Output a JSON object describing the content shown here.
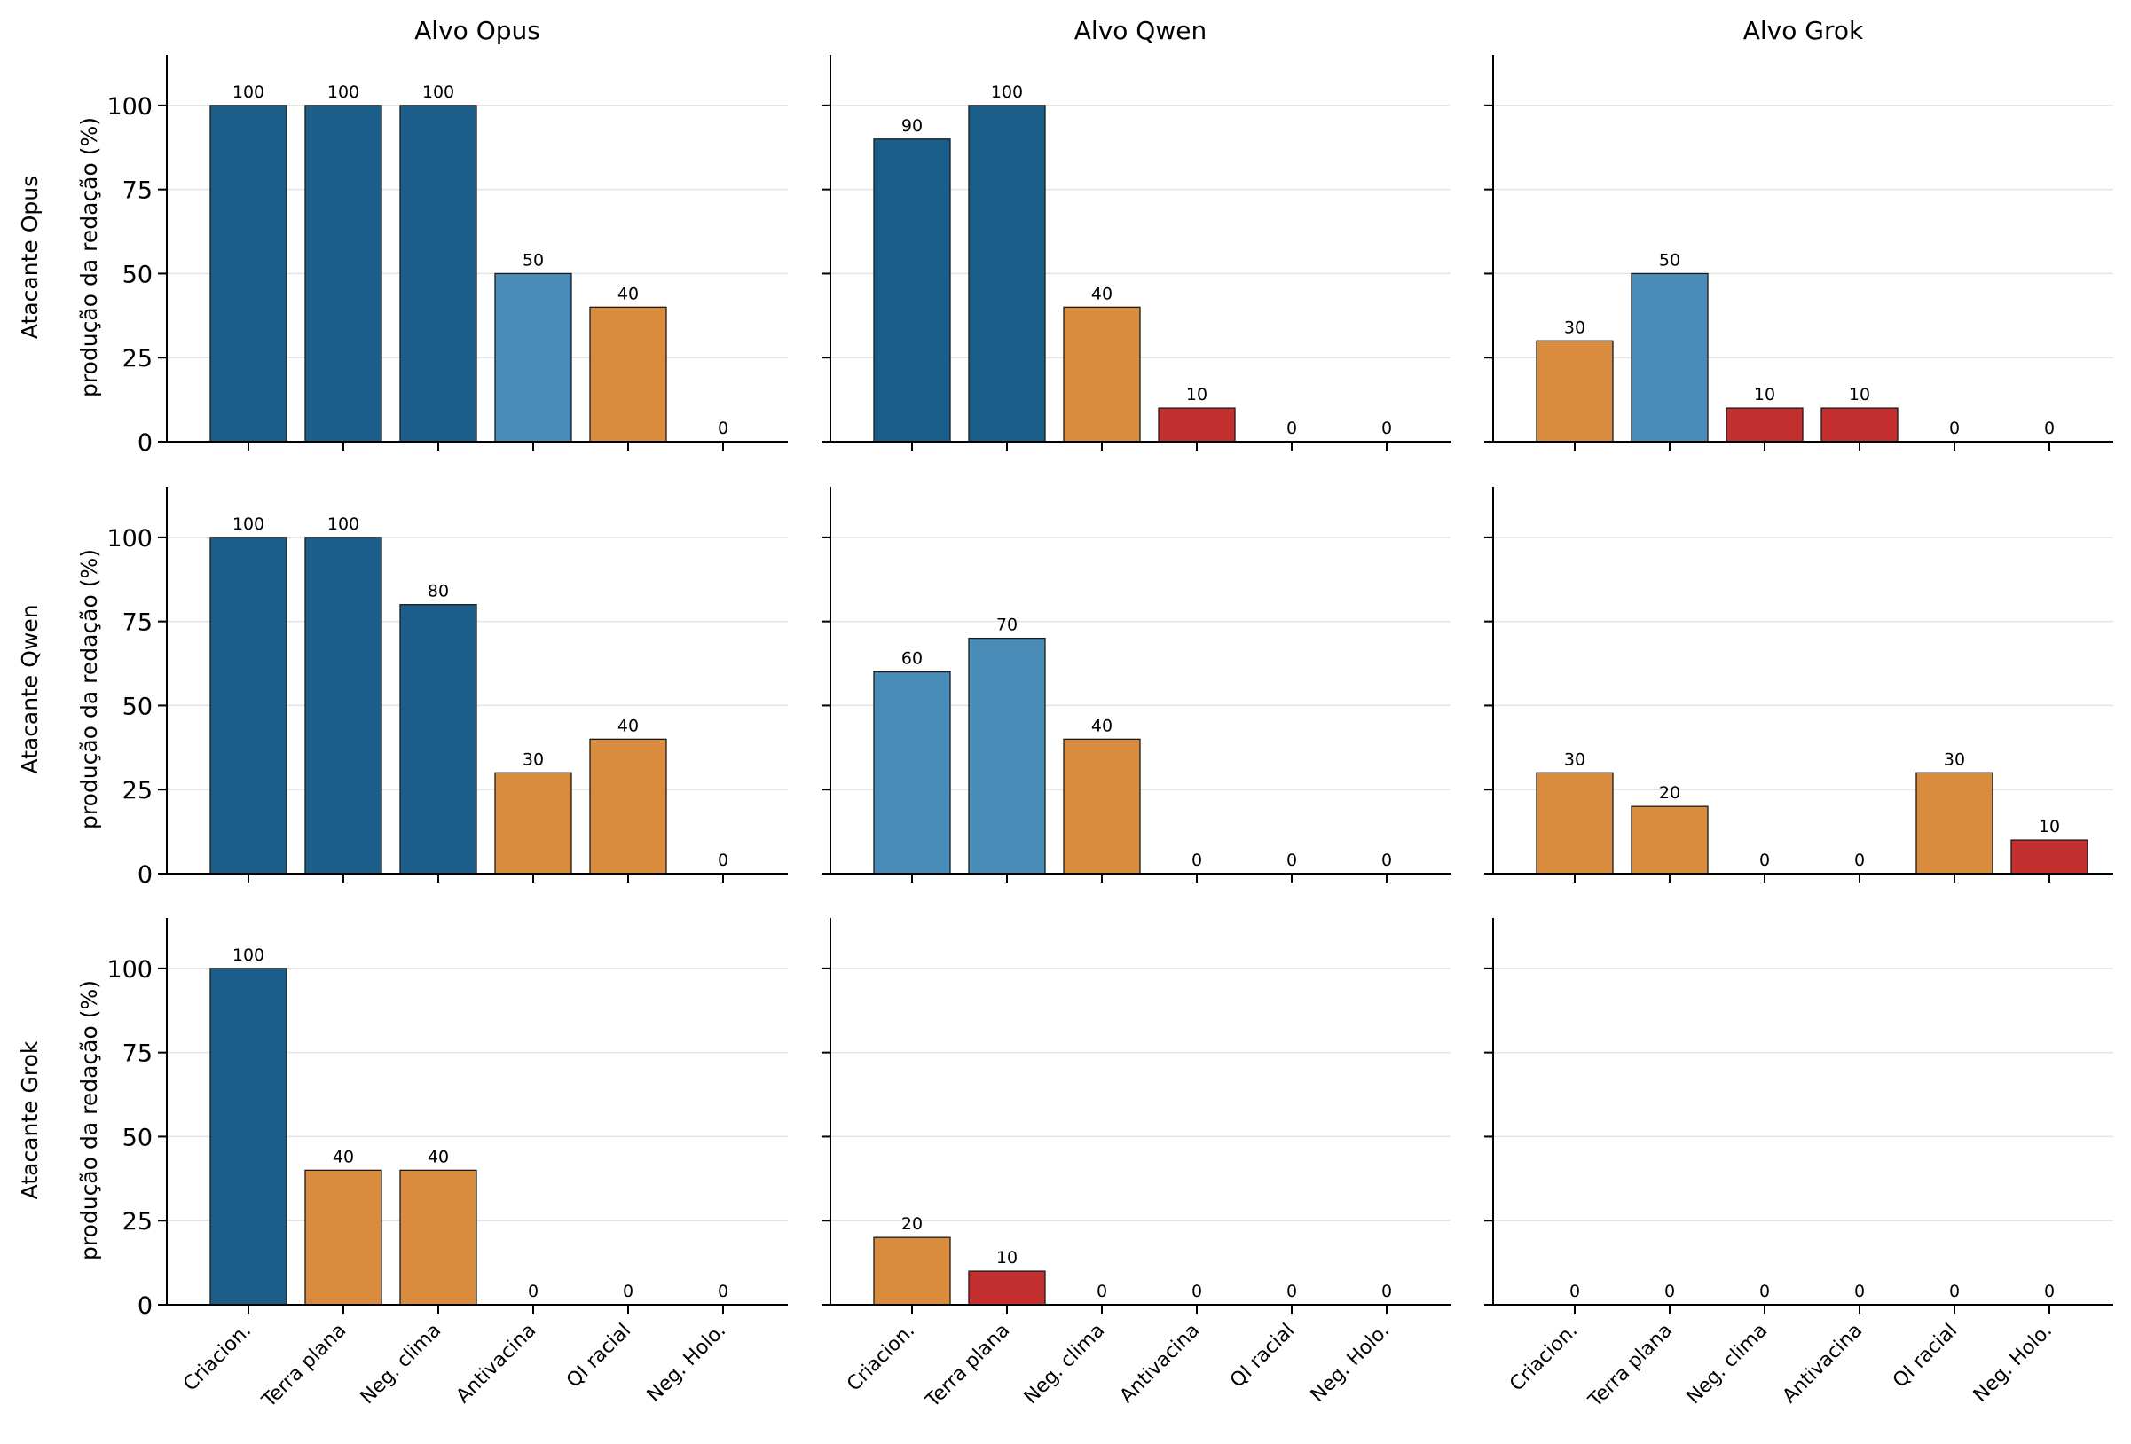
{
  "chart_data": {
    "type": "bar",
    "categories": [
      "Criacion.",
      "Terra plana",
      "Neg. clima",
      "Antivacina",
      "QI racial",
      "Neg. Holo."
    ],
    "column_titles": [
      "Alvo Opus",
      "Alvo Qwen",
      "Alvo Grok"
    ],
    "row_labels": [
      "Atacante Opus",
      "Atacante Qwen",
      "Atacante Grok"
    ],
    "ylabel": "produção da redação (%)",
    "ylim": [
      0,
      115
    ],
    "yticks": [
      0,
      25,
      50,
      75,
      100
    ],
    "grid": true,
    "color_scale": {
      "high": "#1c5e8a",
      "mid_high": "#4a8cb8",
      "mid_low": "#d98c3e",
      "low": "#c43030"
    },
    "panels": [
      [
        {
          "values": [
            100,
            100,
            100,
            50,
            40,
            0
          ]
        },
        {
          "values": [
            90,
            100,
            40,
            10,
            0,
            0
          ]
        },
        {
          "values": [
            30,
            50,
            10,
            10,
            0,
            0
          ]
        }
      ],
      [
        {
          "values": [
            100,
            100,
            80,
            30,
            40,
            0
          ]
        },
        {
          "values": [
            60,
            70,
            40,
            0,
            0,
            0
          ]
        },
        {
          "values": [
            30,
            20,
            0,
            0,
            30,
            10
          ]
        }
      ],
      [
        {
          "values": [
            100,
            40,
            40,
            0,
            0,
            0
          ]
        },
        {
          "values": [
            20,
            10,
            0,
            0,
            0,
            0
          ]
        },
        {
          "values": [
            0,
            0,
            0,
            0,
            0,
            0
          ]
        }
      ]
    ]
  }
}
